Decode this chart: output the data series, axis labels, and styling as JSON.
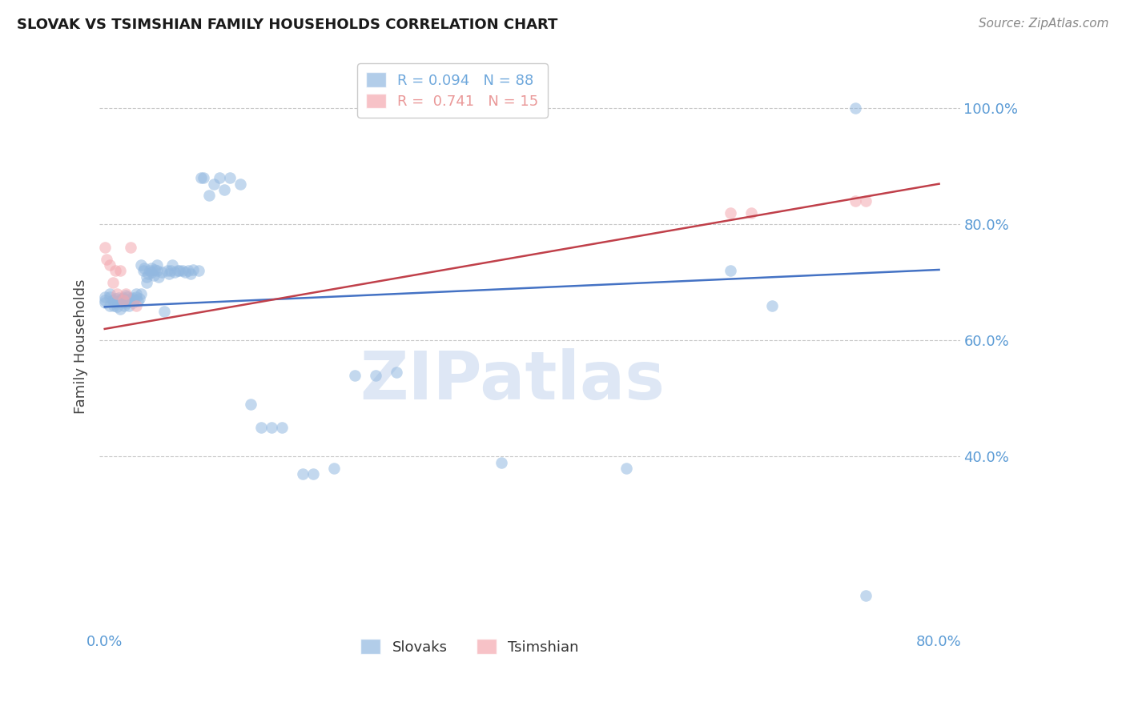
{
  "title": "SLOVAK VS TSIMSHIAN FAMILY HOUSEHOLDS CORRELATION CHART",
  "source": "Source: ZipAtlas.com",
  "ylabel": "Family Households",
  "watermark": "ZIPatlas",
  "legend_entries": [
    {
      "label": "R = 0.094   N = 88",
      "color": "#6fa8dc"
    },
    {
      "label": "R =  0.741   N = 15",
      "color": "#ea9999"
    }
  ],
  "slovaks_x": [
    0.0,
    0.0,
    0.0,
    0.005,
    0.005,
    0.005,
    0.008,
    0.009,
    0.01,
    0.01,
    0.012,
    0.012,
    0.013,
    0.015,
    0.015,
    0.016,
    0.017,
    0.018,
    0.018,
    0.019,
    0.02,
    0.02,
    0.022,
    0.022,
    0.023,
    0.025,
    0.025,
    0.026,
    0.027,
    0.028,
    0.03,
    0.03,
    0.032,
    0.033,
    0.035,
    0.035,
    0.037,
    0.038,
    0.04,
    0.04,
    0.042,
    0.043,
    0.045,
    0.045,
    0.047,
    0.048,
    0.05,
    0.05,
    0.052,
    0.055,
    0.057,
    0.06,
    0.062,
    0.063,
    0.065,
    0.067,
    0.07,
    0.072,
    0.075,
    0.077,
    0.08,
    0.082,
    0.085,
    0.09,
    0.092,
    0.095,
    0.1,
    0.105,
    0.11,
    0.115,
    0.12,
    0.13,
    0.14,
    0.15,
    0.16,
    0.17,
    0.19,
    0.2,
    0.22,
    0.24,
    0.26,
    0.28,
    0.38,
    0.5,
    0.6,
    0.64,
    0.72,
    0.73
  ],
  "slovaks_y": [
    0.67,
    0.675,
    0.665,
    0.68,
    0.66,
    0.675,
    0.67,
    0.66,
    0.672,
    0.665,
    0.668,
    0.658,
    0.673,
    0.668,
    0.655,
    0.672,
    0.67,
    0.673,
    0.665,
    0.66,
    0.67,
    0.678,
    0.675,
    0.665,
    0.66,
    0.668,
    0.672,
    0.673,
    0.665,
    0.67,
    0.675,
    0.68,
    0.668,
    0.672,
    0.73,
    0.68,
    0.72,
    0.725,
    0.71,
    0.7,
    0.715,
    0.72,
    0.725,
    0.718,
    0.712,
    0.722,
    0.72,
    0.73,
    0.71,
    0.718,
    0.65,
    0.72,
    0.715,
    0.72,
    0.73,
    0.718,
    0.72,
    0.72,
    0.72,
    0.718,
    0.72,
    0.715,
    0.722,
    0.72,
    0.88,
    0.88,
    0.85,
    0.87,
    0.88,
    0.86,
    0.88,
    0.87,
    0.49,
    0.45,
    0.45,
    0.45,
    0.37,
    0.37,
    0.38,
    0.54,
    0.54,
    0.545,
    0.39,
    0.38,
    0.72,
    0.66,
    1.0,
    0.16
  ],
  "tsimshian_x": [
    0.0,
    0.002,
    0.005,
    0.008,
    0.01,
    0.012,
    0.015,
    0.018,
    0.02,
    0.025,
    0.03,
    0.6,
    0.62,
    0.72,
    0.73
  ],
  "tsimshian_y": [
    0.76,
    0.74,
    0.73,
    0.7,
    0.72,
    0.68,
    0.72,
    0.67,
    0.68,
    0.76,
    0.66,
    0.82,
    0.82,
    0.84,
    0.84
  ],
  "blue_line": {
    "x0": 0.0,
    "y0": 0.658,
    "x1": 0.8,
    "y1": 0.722
  },
  "pink_line": {
    "x0": 0.0,
    "y0": 0.62,
    "x1": 0.8,
    "y1": 0.87
  },
  "xlim": [
    -0.005,
    0.82
  ],
  "ylim": [
    0.1,
    1.08
  ],
  "ytick_vals": [
    0.4,
    0.6,
    0.8,
    1.0
  ],
  "ytick_labels": [
    "40.0%",
    "60.0%",
    "80.0%",
    "100.0%"
  ],
  "xtick_vals": [
    0.0,
    0.8
  ],
  "xtick_labels": [
    "0.0%",
    "80.0%"
  ],
  "blue_scatter_color": "#92b8e0",
  "pink_scatter_color": "#f4a8b0",
  "blue_line_color": "#4472c4",
  "pink_line_color": "#c0404a",
  "grid_color": "#c8c8c8",
  "axis_tick_color": "#5b9bd5",
  "title_color": "#1a1a1a",
  "source_color": "#888888",
  "ylabel_color": "#444444",
  "background_color": "#ffffff",
  "watermark_color": "#c8d8ef",
  "legend_edge_color": "#cccccc"
}
